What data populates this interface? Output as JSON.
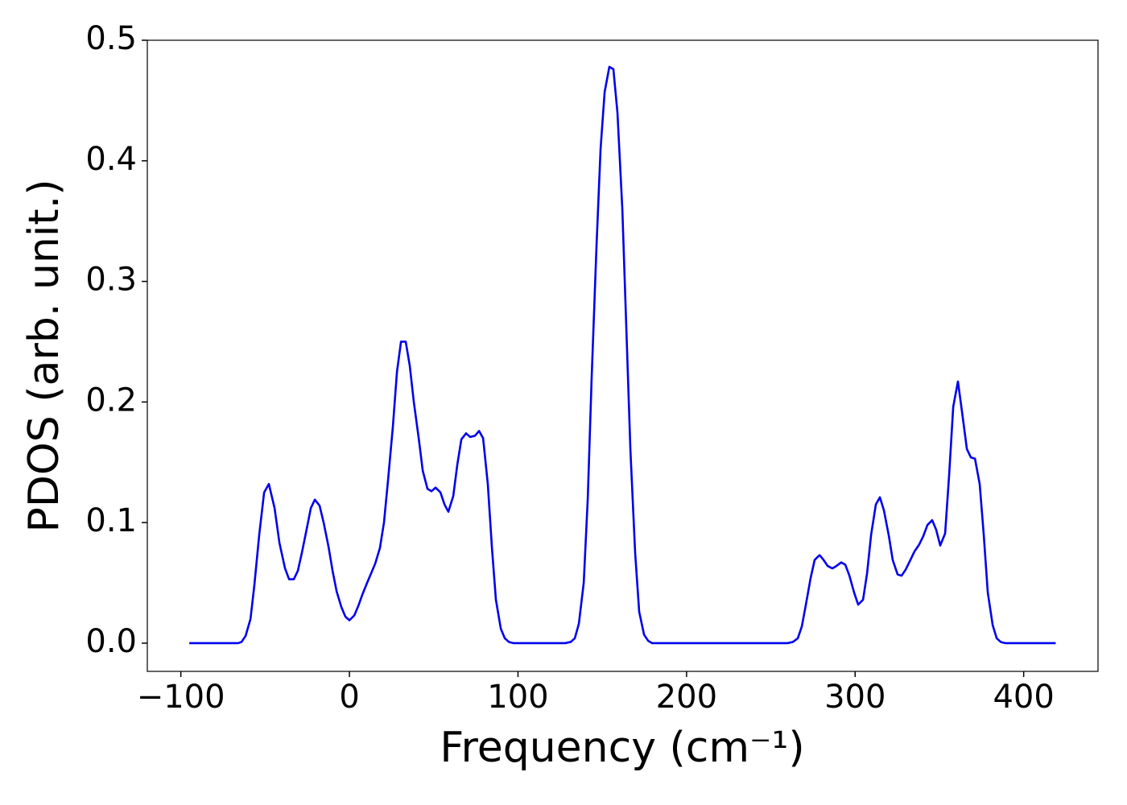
{
  "chart_data": {
    "type": "line",
    "xlabel": "Frequency (cm⁻¹)",
    "ylabel": "PDOS (arb. unit.)",
    "xlim": [
      -119.9,
      444.1
    ],
    "ylim": [
      -0.0234,
      0.5
    ],
    "xticks": [
      {
        "value": -100,
        "label": "−100"
      },
      0,
      100,
      200,
      300,
      400
    ],
    "yticks": [
      {
        "value": 0,
        "label": "0.0"
      },
      0.1,
      0.2,
      0.3,
      0.4,
      0.5
    ],
    "grid": false,
    "series": [
      {
        "color": "#0000ee",
        "x": [
          -95,
          -66,
          -64,
          -61.6,
          -58.7,
          -56.4,
          -53.5,
          -50.6,
          -47.8,
          -44.4,
          -41.5,
          -38.2,
          -35.8,
          -33,
          -30.6,
          -28.2,
          -25.3,
          -22.9,
          -20.5,
          -17.7,
          -15.3,
          -12.4,
          -10,
          -7.6,
          -4.8,
          -2.4,
          0,
          2.9,
          5.3,
          7.6,
          10.5,
          12.9,
          15.3,
          18.1,
          20.5,
          22.9,
          25.8,
          28.2,
          30.6,
          33.4,
          35.8,
          38.2,
          41.1,
          43.5,
          46.3,
          48.7,
          51.1,
          54,
          56.4,
          58.7,
          61.6,
          64,
          66.4,
          69.2,
          71.6,
          74.5,
          76.9,
          79.3,
          82.1,
          84.5,
          86.9,
          89.8,
          92.2,
          94.6,
          97.4,
          128,
          131.3,
          133.7,
          136.1,
          139,
          141.4,
          143.7,
          146.6,
          149,
          151.4,
          154.2,
          156.6,
          159,
          161.9,
          164.3,
          166.7,
          169.5,
          171.9,
          174.8,
          177.2,
          179.6,
          260,
          263.1,
          266,
          268.4,
          270.8,
          273.6,
          276,
          278.9,
          281.3,
          283.7,
          286.5,
          288.9,
          291.8,
          294.2,
          296.6,
          299.4,
          301.8,
          304.7,
          307.1,
          309.5,
          312.3,
          314.7,
          317.1,
          320,
          322.3,
          325.2,
          327.6,
          330,
          332.8,
          335.2,
          338.1,
          340.5,
          342.9,
          345.7,
          348.1,
          350.5,
          353.4,
          355.8,
          358.2,
          361,
          363.4,
          366.3,
          368.7,
          371.1,
          373.9,
          376.3,
          378.7,
          381.6,
          384,
          386.4,
          389.2,
          419
        ],
        "values": [
          0,
          0,
          0.001,
          0.006,
          0.02,
          0.048,
          0.09,
          0.125,
          0.132,
          0.112,
          0.083,
          0.062,
          0.053,
          0.053,
          0.06,
          0.075,
          0.095,
          0.112,
          0.119,
          0.114,
          0.1,
          0.08,
          0.06,
          0.043,
          0.03,
          0.022,
          0.019,
          0.023,
          0.031,
          0.04,
          0.05,
          0.058,
          0.066,
          0.079,
          0.1,
          0.135,
          0.18,
          0.225,
          0.25,
          0.25,
          0.23,
          0.2,
          0.17,
          0.143,
          0.128,
          0.126,
          0.129,
          0.125,
          0.115,
          0.109,
          0.122,
          0.148,
          0.169,
          0.174,
          0.171,
          0.172,
          0.176,
          0.17,
          0.132,
          0.08,
          0.036,
          0.012,
          0.004,
          0.001,
          0,
          0,
          0.001,
          0.004,
          0.016,
          0.05,
          0.12,
          0.22,
          0.33,
          0.41,
          0.457,
          0.478,
          0.476,
          0.44,
          0.36,
          0.26,
          0.16,
          0.075,
          0.026,
          0.007,
          0.002,
          0,
          0,
          0.001,
          0.004,
          0.014,
          0.032,
          0.054,
          0.069,
          0.073,
          0.069,
          0.064,
          0.062,
          0.064,
          0.067,
          0.065,
          0.056,
          0.042,
          0.032,
          0.036,
          0.058,
          0.09,
          0.115,
          0.121,
          0.11,
          0.089,
          0.069,
          0.057,
          0.056,
          0.061,
          0.069,
          0.076,
          0.082,
          0.089,
          0.098,
          0.102,
          0.094,
          0.081,
          0.091,
          0.14,
          0.196,
          0.217,
          0.192,
          0.161,
          0.154,
          0.153,
          0.132,
          0.09,
          0.042,
          0.015,
          0.004,
          0.001,
          0,
          0
        ]
      }
    ]
  }
}
